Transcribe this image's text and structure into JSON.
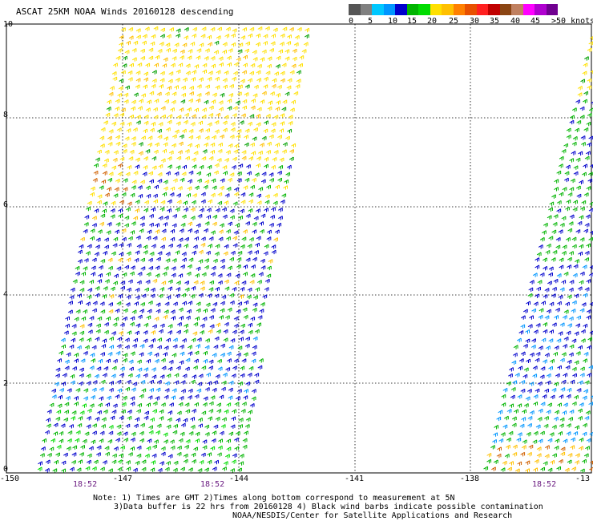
{
  "title": "ASCAT 25KM NOAA Winds 20160128 descending",
  "legend": {
    "colors": [
      "#555555",
      "#808080",
      "#00c8ff",
      "#0096ff",
      "#0000cc",
      "#00b400",
      "#00dc00",
      "#ffe000",
      "#ffc000",
      "#ff8000",
      "#e85000",
      "#ff2020",
      "#c00000",
      "#8b4513",
      "#c08060",
      "#ff00ff",
      "#b000d0",
      "#700090"
    ],
    "labels": [
      "0",
      "5",
      "10",
      "15",
      "20",
      "25",
      "30",
      "35",
      "40",
      "45",
      ">50 knots"
    ]
  },
  "lat_labels": [
    "10",
    "8",
    "6",
    "4",
    "2",
    "0"
  ],
  "lon_labels": [
    "-150",
    "-147",
    "-144",
    "-141",
    "-138",
    "-13"
  ],
  "time_labels": [
    "18:52",
    "18:52",
    "18:52"
  ],
  "notes": [
    "Note: 1) Times are GMT 2)Times along bottom correspond to measurement at 5N",
    "3)Data buffer is 22 hrs from 20160128 4) Black wind barbs indicate possible contamination",
    "NOAA/NESDIS/Center for Satellite Applications and Research"
  ]
}
